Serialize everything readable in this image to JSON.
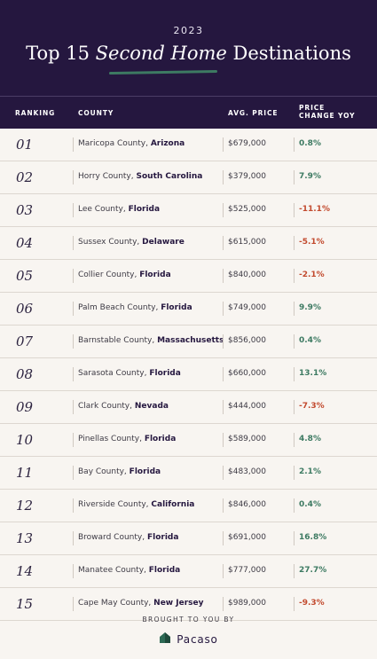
{
  "header": {
    "year": "2023",
    "title_part1": "Top 15",
    "title_italic": "Second Home",
    "title_part2": "Destinations"
  },
  "columns": {
    "ranking": "RANKING",
    "county": "COUNTY",
    "avg_price": "AVG. PRICE",
    "price_change_line1": "PRICE",
    "price_change_line2": "CHANGE YOY"
  },
  "rows": [
    {
      "rank": "01",
      "county": "Maricopa County,",
      "state": "Arizona",
      "price": "$679,000",
      "change": "0.8%"
    },
    {
      "rank": "02",
      "county": "Horry County,",
      "state": "South Carolina",
      "price": "$379,000",
      "change": "7.9%"
    },
    {
      "rank": "03",
      "county": "Lee County,",
      "state": "Florida",
      "price": "$525,000",
      "change": "-11.1%"
    },
    {
      "rank": "04",
      "county": "Sussex County,",
      "state": "Delaware",
      "price": "$615,000",
      "change": "-5.1%"
    },
    {
      "rank": "05",
      "county": "Collier County,",
      "state": "Florida",
      "price": "$840,000",
      "change": "-2.1%"
    },
    {
      "rank": "06",
      "county": "Palm Beach County,",
      "state": "Florida",
      "price": "$749,000",
      "change": "9.9%"
    },
    {
      "rank": "07",
      "county": "Barnstable County,",
      "state": "Massachusetts",
      "price": "$856,000",
      "change": "0.4%"
    },
    {
      "rank": "08",
      "county": "Sarasota County,",
      "state": "Florida",
      "price": "$660,000",
      "change": "13.1%"
    },
    {
      "rank": "09",
      "county": "Clark County,",
      "state": "Nevada",
      "price": "$444,000",
      "change": "-7.3%"
    },
    {
      "rank": "10",
      "county": "Pinellas County,",
      "state": "Florida",
      "price": "$589,000",
      "change": "4.8%"
    },
    {
      "rank": "11",
      "county": "Bay County,",
      "state": "Florida",
      "price": "$483,000",
      "change": "2.1%"
    },
    {
      "rank": "12",
      "county": "Riverside County,",
      "state": "California",
      "price": "$846,000",
      "change": "0.4%"
    },
    {
      "rank": "13",
      "county": "Broward County,",
      "state": "Florida",
      "price": "$691,000",
      "change": "16.8%"
    },
    {
      "rank": "14",
      "county": "Manatee County,",
      "state": "Florida",
      "price": "$777,000",
      "change": "27.7%"
    },
    {
      "rank": "15",
      "county": "Cape May County,",
      "state": "New Jersey",
      "price": "$989,000",
      "change": "-9.3%"
    }
  ],
  "footer": {
    "brought_by": "BROUGHT TO YOU BY",
    "brand": "Pacaso",
    "brand_icon": "house-logo-icon"
  },
  "colors": {
    "header_bg": "#25173f",
    "accent_green": "#3d7a62",
    "negative_red": "#c24a2e",
    "page_bg": "#f8f5f1"
  }
}
